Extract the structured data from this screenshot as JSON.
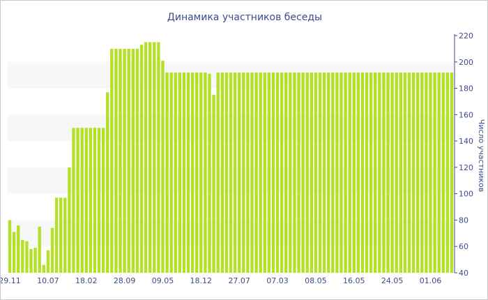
{
  "chart_data": {
    "type": "bar",
    "title": "Динамика участников беседы",
    "xlabel": "",
    "ylabel": "Число участников",
    "ylim": [
      40,
      220
    ],
    "y_ticks": [
      40,
      60,
      80,
      100,
      120,
      140,
      160,
      180,
      200,
      220
    ],
    "y_axis_position": "right",
    "bar_color": "#b5e02a",
    "band_color": "#f7f7f7",
    "text_color": "#3b4a8c",
    "x_tick_labels": [
      {
        "index": 0,
        "label": "29.11"
      },
      {
        "index": 9,
        "label": "10.07"
      },
      {
        "index": 18,
        "label": "18.02"
      },
      {
        "index": 27,
        "label": "28.09"
      },
      {
        "index": 36,
        "label": "09.05"
      },
      {
        "index": 45,
        "label": "18.12"
      },
      {
        "index": 54,
        "label": "27.07"
      },
      {
        "index": 63,
        "label": "07.03"
      },
      {
        "index": 72,
        "label": "08.05"
      },
      {
        "index": 81,
        "label": "16.05"
      },
      {
        "index": 90,
        "label": "24.05"
      },
      {
        "index": 99,
        "label": "01.06"
      }
    ],
    "values": [
      80,
      71,
      76,
      65,
      64,
      58,
      59,
      75,
      46,
      57,
      74,
      97,
      97,
      97,
      120,
      150,
      150,
      150,
      150,
      150,
      150,
      150,
      150,
      177,
      210,
      210,
      210,
      210,
      210,
      210,
      210,
      213,
      215,
      215,
      215,
      215,
      201,
      192,
      192,
      192,
      192,
      192,
      192,
      192,
      192,
      192,
      192,
      191,
      175,
      192,
      192,
      192,
      192,
      192,
      192,
      192,
      192,
      192,
      192,
      192,
      192,
      192,
      192,
      192,
      192,
      192,
      192,
      192,
      192,
      192,
      192,
      192,
      192,
      192,
      192,
      192,
      192,
      192,
      192,
      192,
      192,
      192,
      192,
      192,
      192,
      192,
      192,
      192,
      192,
      192,
      192,
      192,
      192,
      192,
      192,
      192,
      192,
      192,
      192,
      192,
      192,
      192,
      192,
      192,
      192
    ]
  }
}
